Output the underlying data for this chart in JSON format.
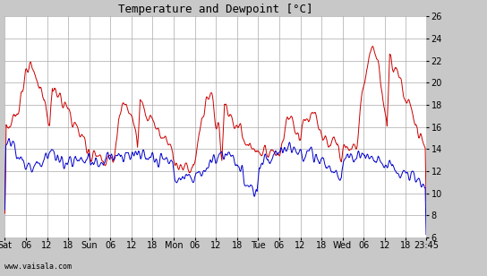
{
  "title": "Temperature and Dewpoint [°C]",
  "ylim": [
    6,
    26
  ],
  "yticks": [
    6,
    8,
    10,
    12,
    14,
    16,
    18,
    20,
    22,
    24,
    26
  ],
  "bg_color": "#c8c8c8",
  "plot_bg_color": "#ffffff",
  "grid_color": "#aaaaaa",
  "temp_color": "#cc0000",
  "dewp_color": "#0000cc",
  "line_width": 0.7,
  "watermark": "www.vaisala.com",
  "day_names": [
    "Sat",
    "Sun",
    "Mon",
    "Tue",
    "Wed"
  ],
  "hour_labels": [
    "06",
    "12",
    "18"
  ],
  "end_label": "23:45",
  "figwidth": 5.44,
  "figheight": 3.08,
  "dpi": 100
}
